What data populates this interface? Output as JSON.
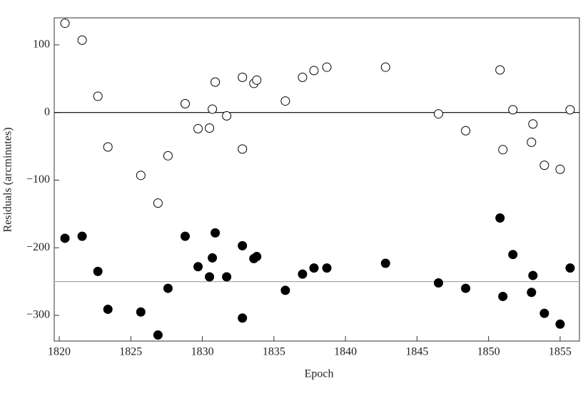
{
  "chart_data": {
    "type": "scatter",
    "x_label": "Epoch",
    "y_label": "Residuals (arcminutes)",
    "xlim": [
      1819.65,
      1856.35
    ],
    "ylim": [
      -338,
      140
    ],
    "xticks": [
      1820,
      1825,
      1830,
      1835,
      1840,
      1845,
      1850,
      1855
    ],
    "yticks": [
      100,
      0,
      {
        "value": -100,
        "label": "−100"
      },
      {
        "value": -200,
        "label": "−200"
      },
      {
        "value": -300,
        "label": "−300"
      }
    ],
    "hlines": [
      {
        "value": 0,
        "color": "#000000"
      },
      {
        "value": -250,
        "color": "#aaaaaa"
      }
    ],
    "x": [
      1820.4,
      1821.6,
      1822.7,
      1823.4,
      1825.7,
      1826.9,
      1827.6,
      1828.8,
      1829.7,
      1830.5,
      1830.7,
      1830.9,
      1831.7,
      1832.8,
      1832.8,
      1833.6,
      1833.8,
      1835.8,
      1837.0,
      1837.8,
      1838.7,
      1842.8,
      1846.5,
      1848.4,
      1850.8,
      1851.0,
      1851.7,
      1853.1,
      1853.0,
      1853.9,
      1855.0,
      1855.7
    ],
    "series": [
      {
        "color": "#000000",
        "filled": false,
        "values": [
          132,
          107,
          24,
          -51,
          -93,
          -134,
          -64,
          13,
          -24,
          -23,
          5,
          45,
          -5,
          52,
          -54,
          43,
          48,
          17,
          52,
          62,
          67,
          67,
          -2,
          -27,
          63,
          -55,
          4,
          -17,
          -44,
          -78,
          -84,
          4
        ]
      },
      {
        "color": "#000000",
        "filled": true,
        "values": [
          -186,
          -183,
          -235,
          -291,
          -295,
          -329,
          -260,
          -183,
          -228,
          -243,
          -215,
          -178,
          -243,
          -197,
          -304,
          -216,
          -213,
          -263,
          -239,
          -230,
          -230,
          -223,
          -252,
          -260,
          -156,
          -272,
          -210,
          -241,
          -266,
          -297,
          -313,
          -230
        ]
      }
    ]
  }
}
